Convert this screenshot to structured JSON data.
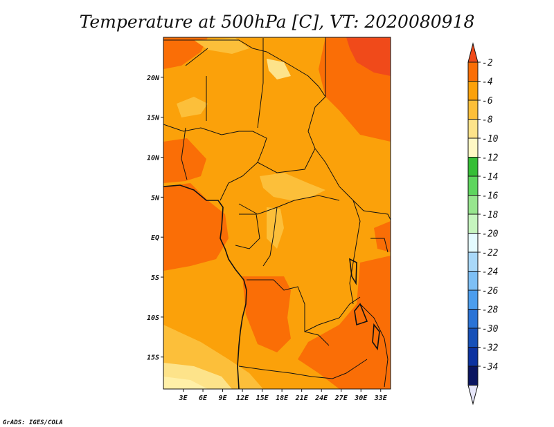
{
  "title": "Temperature at 500hPa [C], VT: 2020080918",
  "credit": "GrADS: IGES/COLA",
  "map": {
    "lat_range": [
      -19,
      25
    ],
    "lon_range": [
      0,
      34.5
    ],
    "lat_ticks": [
      {
        "value": 20,
        "label": "20N"
      },
      {
        "value": 15,
        "label": "15N"
      },
      {
        "value": 10,
        "label": "10N"
      },
      {
        "value": 5,
        "label": "5N"
      },
      {
        "value": 0,
        "label": "EQ"
      },
      {
        "value": -5,
        "label": "5S"
      },
      {
        "value": -10,
        "label": "10S"
      },
      {
        "value": -15,
        "label": "15S"
      }
    ],
    "lon_ticks": [
      {
        "value": 3,
        "label": "3E"
      },
      {
        "value": 6,
        "label": "6E"
      },
      {
        "value": 9,
        "label": "9E"
      },
      {
        "value": 12,
        "label": "12E"
      },
      {
        "value": 15,
        "label": "15E"
      },
      {
        "value": 18,
        "label": "18E"
      },
      {
        "value": 21,
        "label": "21E"
      },
      {
        "value": 24,
        "label": "24E"
      },
      {
        "value": 27,
        "label": "27E"
      },
      {
        "value": 30,
        "label": "30E"
      },
      {
        "value": 33,
        "label": "33E"
      }
    ]
  },
  "colorbar": {
    "levels": [
      "-2",
      "-4",
      "-6",
      "-8",
      "-10",
      "-12",
      "-14",
      "-16",
      "-18",
      "-20",
      "-22",
      "-24",
      "-26",
      "-28",
      "-30",
      "-32",
      "-34"
    ],
    "colors": [
      "#f04a1a",
      "#fa6e06",
      "#fba10a",
      "#fcbf3a",
      "#fde38a",
      "#fff8c4",
      "#35be36",
      "#5ed55e",
      "#97e58e",
      "#c6f5bf",
      "#e4fbff",
      "#a9d8f9",
      "#7dbff5",
      "#4c9ded",
      "#2a73d6",
      "#1650b8",
      "#0c32a0",
      "#0a1560",
      "#e6e6fa"
    ]
  },
  "field": {
    "units": "C",
    "colors": {
      "warm_-2": "#f04a1a",
      "band_-4": "#fa6e06",
      "band_-6": "#fba10a",
      "band_-8": "#fcbf3a",
      "band_-10": "#fde38a",
      "band_-12": "#fff8c4"
    }
  }
}
